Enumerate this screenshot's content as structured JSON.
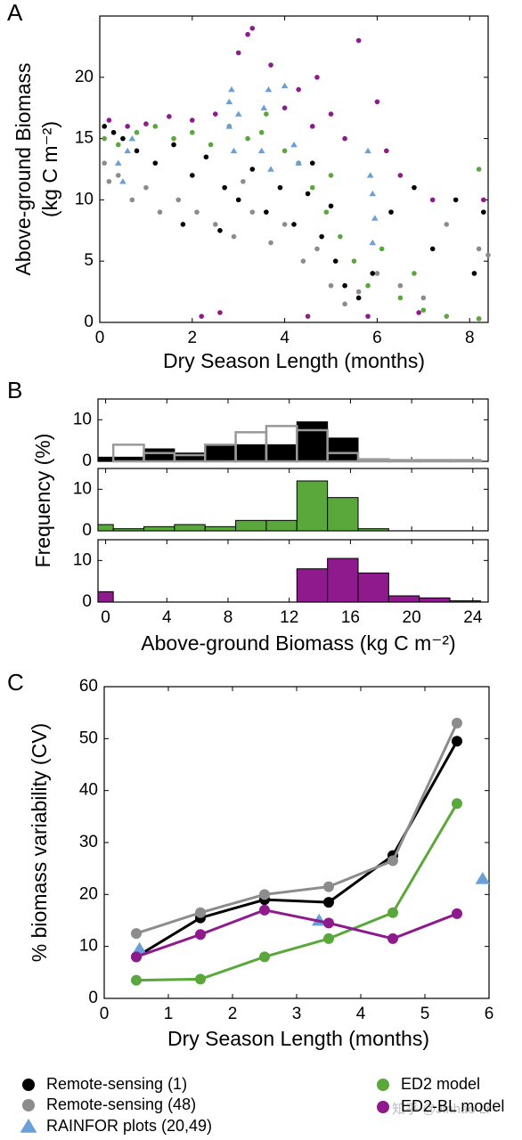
{
  "chart_data": [
    {
      "type": "scatter",
      "label": "A",
      "xlabel": "Dry Season Length (months)",
      "ylabel": [
        "Above-ground Biomass",
        "(kg C m⁻²)"
      ],
      "xlim": [
        0,
        8.4
      ],
      "ylim": [
        0,
        25
      ],
      "xticks": [
        0,
        2,
        4,
        6,
        8
      ],
      "yticks": [
        0,
        5,
        10,
        15,
        20
      ],
      "series": [
        {
          "color": "#8c8c8c",
          "marker": "circle",
          "x": [
            0.1,
            0.4,
            0.7,
            1,
            1.3,
            1.7,
            2.1,
            2.5,
            2.9,
            3.3,
            3.7,
            4,
            4.4,
            4.7,
            5,
            5.3,
            5.6,
            6,
            6.5,
            7,
            7.5,
            8.2,
            8.4,
            0.2,
            3.1
          ],
          "y": [
            13,
            12,
            10,
            11,
            9,
            10,
            9,
            8,
            7,
            9,
            6.5,
            8,
            5,
            6,
            3,
            1.5,
            2.5,
            4,
            3,
            2,
            8,
            6,
            5.5,
            11.5,
            11.5
          ]
        },
        {
          "color": "#000000",
          "marker": "circle",
          "x": [
            0.1,
            0.3,
            0.5,
            0.8,
            1.2,
            1.6,
            2,
            2.3,
            2.7,
            3,
            3.3,
            3.6,
            3.9,
            4.2,
            4.5,
            4.8,
            5.1,
            5.3,
            5.6,
            5.9,
            6.3,
            6.8,
            7.2,
            7.7,
            8.1,
            8.3,
            1.8,
            2.6,
            4.6,
            5
          ],
          "y": [
            16,
            15.5,
            15,
            14,
            13,
            14.5,
            12,
            13.5,
            11,
            10,
            12.5,
            9,
            11,
            8,
            10.5,
            7,
            5,
            3,
            2,
            4,
            9,
            11,
            6,
            10,
            4,
            9,
            8,
            7.5,
            13,
            9.5
          ]
        },
        {
          "color": "#8e1a8e",
          "marker": "circle",
          "x": [
            0.2,
            0.6,
            1,
            1.5,
            2,
            2.5,
            3,
            3.3,
            3.7,
            4,
            4.3,
            4.6,
            5,
            5.3,
            5.6,
            6,
            6.2,
            6.5,
            7.2,
            8.3,
            2.2,
            4.5,
            5.8,
            6.9,
            8.2,
            2.6,
            3.2,
            4.7
          ],
          "y": [
            16.5,
            16,
            16.2,
            16.8,
            16.5,
            17,
            22,
            24,
            21,
            17.5,
            19,
            16,
            17,
            15,
            23,
            18,
            14,
            12,
            10,
            10,
            0.5,
            0.5,
            0.5,
            0.8,
            0.3,
            0.8,
            23.5,
            20
          ]
        },
        {
          "color": "#5aa83c",
          "marker": "circle",
          "x": [
            0.1,
            0.4,
            0.8,
            1.2,
            1.6,
            2,
            2.4,
            2.8,
            3.2,
            3.6,
            4,
            4.3,
            4.6,
            4.9,
            5.2,
            5.5,
            5.8,
            6.1,
            6.5,
            7,
            7.5,
            8.2,
            3.5,
            5,
            6.8,
            8.2
          ],
          "y": [
            15,
            14.5,
            15.5,
            16,
            15,
            15.5,
            14.5,
            16,
            15,
            17,
            14,
            13,
            11,
            9,
            7,
            5,
            3,
            6,
            2,
            1,
            0.5,
            0.3,
            15.5,
            12,
            4,
            12.5
          ]
        },
        {
          "color": "#6a9fd8",
          "marker": "triangle",
          "x": [
            0.4,
            0.5,
            0.6,
            0.7,
            2.8,
            2.85,
            2.9,
            2.8,
            3,
            3.5,
            3.55,
            3.65,
            3.7,
            4,
            4.2,
            4.3,
            5.8,
            5.85,
            5.9,
            5.95,
            5.9
          ],
          "y": [
            13,
            11.5,
            14,
            15,
            18,
            19,
            14,
            16,
            17,
            14,
            17.5,
            19,
            12.5,
            19.3,
            14.5,
            13,
            14,
            12,
            10.5,
            8.5,
            6.5
          ]
        }
      ]
    },
    {
      "type": "histogram",
      "label": "B",
      "xlabel": "Above-ground Biomass (kg C m⁻²)",
      "ylabel": "Frequency (%)",
      "bins": [
        -0.5,
        0.5,
        2.5,
        4.5,
        6.5,
        8.5,
        10.5,
        12.5,
        14.5,
        16.5,
        18.5,
        20.5,
        22.5,
        24.5
      ],
      "xlim": [
        -0.5,
        25
      ],
      "xticks": [
        0,
        4,
        8,
        12,
        16,
        20,
        24
      ],
      "panels": [
        {
          "ylim": [
            0,
            15
          ],
          "yticks": [
            0,
            10
          ],
          "series": [
            {
              "color": "#000000",
              "values": [
                1,
                1,
                3,
                2,
                4,
                4,
                4,
                9.5,
                5.6,
                0.5,
                0,
                0,
                0
              ]
            },
            {
              "color": "#999999",
              "fill": "none",
              "values": [
                0,
                4,
                2,
                1.5,
                4,
                7,
                8.5,
                7.5,
                2,
                0.5,
                0.3,
                0.3,
                0.3
              ]
            }
          ]
        },
        {
          "ylim": [
            0,
            15
          ],
          "yticks": [
            0,
            10
          ],
          "series": [
            {
              "color": "#5aa83c",
              "values": [
                1.5,
                0.5,
                1,
                1.5,
                1,
                2.5,
                2.5,
                12,
                8,
                0.5,
                0,
                0,
                0
              ]
            }
          ]
        },
        {
          "ylim": [
            0,
            15
          ],
          "yticks": [
            0,
            10
          ],
          "series": [
            {
              "color": "#8e1a8e",
              "values": [
                2.5,
                0,
                0,
                0,
                0,
                0,
                0,
                8,
                10.5,
                7,
                1.5,
                1,
                0.3
              ]
            }
          ]
        }
      ]
    },
    {
      "type": "line",
      "label": "C",
      "xlabel": "Dry Season Length (months)",
      "ylabel": "% biomass variability (CV)",
      "xlim": [
        0,
        6
      ],
      "ylim": [
        0,
        60
      ],
      "xticks": [
        0,
        1,
        2,
        3,
        4,
        5,
        6
      ],
      "yticks": [
        0,
        10,
        20,
        30,
        40,
        50,
        60
      ],
      "series": [
        {
          "name": "Remote-sensing (1)",
          "color": "#000000",
          "marker": "circle",
          "line": true,
          "x": [
            0.5,
            1.5,
            2.5,
            3.5,
            4.5,
            5.5
          ],
          "values": [
            8,
            15.5,
            19,
            18.5,
            27.5,
            49.5
          ]
        },
        {
          "name": "Remote-sensing (48)",
          "color": "#8c8c8c",
          "marker": "circle",
          "line": true,
          "x": [
            0.5,
            1.5,
            2.5,
            3.5,
            4.5,
            5.5
          ],
          "values": [
            12.5,
            16.5,
            20,
            21.5,
            26.5,
            53
          ]
        },
        {
          "name": "RAINFOR plots (20,49)",
          "color": "#6a9fd8",
          "marker": "triangle",
          "line": false,
          "x": [
            0.55,
            3.35,
            5.9
          ],
          "values": [
            9.5,
            15,
            23
          ]
        },
        {
          "name": "ED2 model",
          "color": "#5aa83c",
          "marker": "circle",
          "line": true,
          "x": [
            0.5,
            1.5,
            2.5,
            3.5,
            4.5,
            5.5
          ],
          "values": [
            3.5,
            3.7,
            8,
            11.5,
            16.5,
            37.5
          ]
        },
        {
          "name": "ED2-BL model",
          "color": "#8e1a8e",
          "marker": "circle",
          "line": true,
          "x": [
            0.5,
            1.5,
            2.5,
            3.5,
            4.5,
            5.5
          ],
          "values": [
            8,
            12.3,
            17,
            14.5,
            11.5,
            16.3
          ]
        }
      ]
    }
  ],
  "watermark": "知乎 @Jinhao Li"
}
